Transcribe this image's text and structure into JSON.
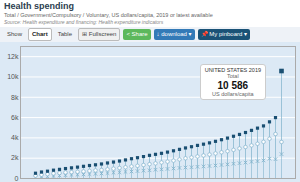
{
  "chart_data": {
    "type": "dot",
    "title": "Health spending",
    "subtitle": "Total / Government/Compulsory / Voluntary, US dollars/capita, 2019 or latest available",
    "caption": "Source: Health expenditure and financing: Health expenditure indicators",
    "toolbar": [
      {
        "text": "Show"
      },
      {
        "text": "Chart"
      },
      {
        "text": "Table"
      },
      {
        "text": "⊞ Fullscreen"
      },
      {
        "text": "< Share",
        "color": "#5cb85c"
      },
      {
        "text": "↓ download ▾",
        "color": "#337ab7"
      },
      {
        "text": "📌 My pinboard ▾",
        "color": "#1a5276"
      }
    ],
    "annotations": [
      "UNITED STATES 2019",
      "Total",
      "10 586",
      "US dollars/capita"
    ],
    "categories": [
      null,
      null,
      null,
      null,
      null,
      null,
      null,
      null,
      null,
      null,
      null,
      null,
      null,
      null,
      null,
      null,
      null,
      null,
      null,
      null,
      null,
      null,
      null,
      null,
      null,
      null,
      null,
      null,
      null,
      null,
      null,
      null,
      null,
      null,
      null,
      null,
      null,
      null,
      null,
      null,
      null,
      null
    ],
    "series": [
      {
        "color": "#1a4f72",
        "marker": "square",
        "values": [
          520,
          640,
          720,
          820,
          900,
          980,
          1050,
          1120,
          1200,
          1280,
          1350,
          1430,
          1530,
          1620,
          1720,
          1830,
          1950,
          2050,
          2160,
          2280,
          2380,
          2480,
          2600,
          2730,
          2870,
          3010,
          3130,
          3260,
          3380,
          3510,
          3660,
          3820,
          3980,
          4160,
          4340,
          4530,
          4740,
          4960,
          5180,
          5580,
          6000,
          10586
        ]
      },
      {
        "color": "#8ab8d0",
        "marker": "circle",
        "values": [
          280,
          370,
          430,
          500,
          540,
          600,
          630,
          660,
          700,
          750,
          800,
          840,
          900,
          970,
          1040,
          1110,
          1190,
          1250,
          1330,
          1410,
          1490,
          1580,
          1660,
          1760,
          1880,
          1990,
          2070,
          2170,
          2270,
          2360,
          2470,
          2580,
          2690,
          2820,
          2960,
          3100,
          3260,
          3420,
          3610,
          3920,
          4380,
          3600
        ]
      },
      {
        "color": "#7aafc8",
        "marker": "x",
        "values": [
          120,
          170,
          210,
          250,
          290,
          320,
          350,
          370,
          400,
          430,
          460,
          490,
          530,
          570,
          610,
          650,
          690,
          730,
          770,
          810,
          860,
          900,
          940,
          990,
          1040,
          1080,
          1110,
          1150,
          1190,
          1230,
          1280,
          1330,
          1390,
          1450,
          1510,
          1570,
          1640,
          1710,
          1780,
          1950,
          1900,
          2400
        ]
      }
    ],
    "ylim": [
      0,
      13000
    ],
    "yticks": [
      {
        "value": 12000,
        "label": "12k"
      },
      {
        "value": 10000,
        "label": "10k"
      },
      {
        "value": 8000,
        "label": "8k"
      },
      {
        "value": 6000,
        "label": "6k"
      },
      {
        "value": 4000,
        "label": "4k"
      },
      {
        "value": 2000,
        "label": "2k"
      },
      0
    ],
    "grid": true,
    "tick_labels": "y"
  }
}
